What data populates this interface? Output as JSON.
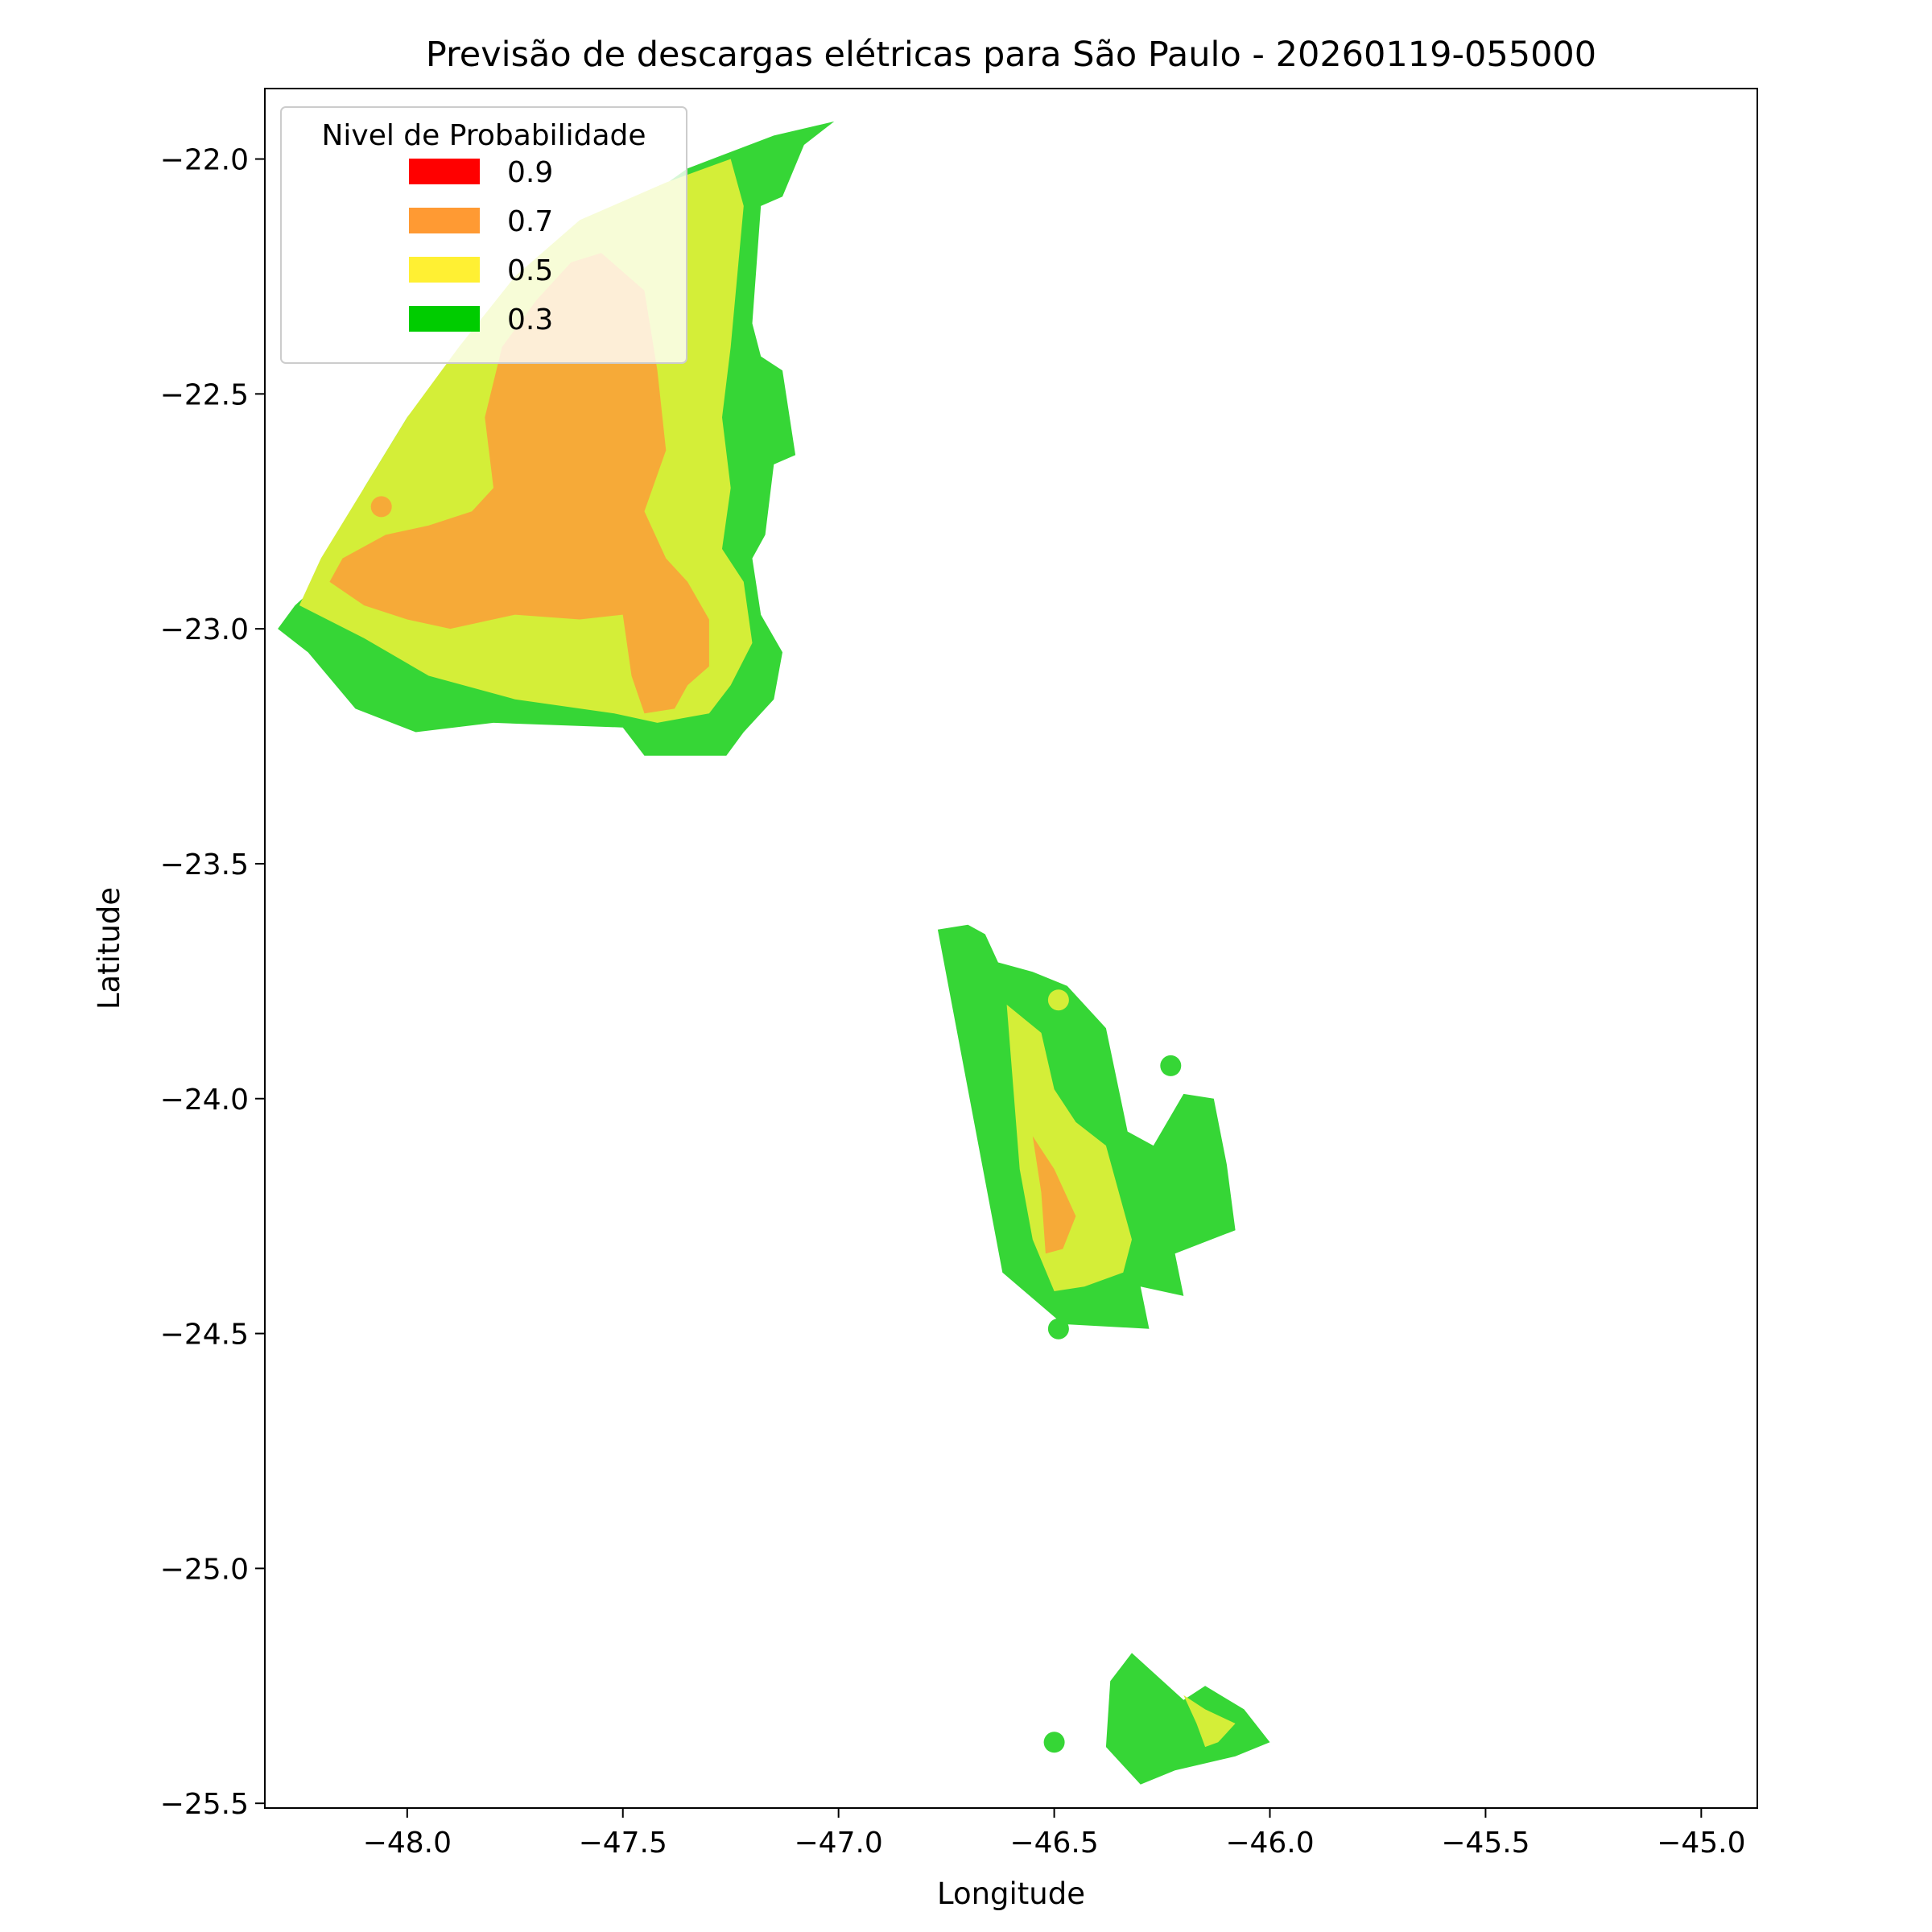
{
  "chart_data": {
    "type": "contour-map",
    "title": "Previsão de descargas elétricas para São Paulo - 20260119-055000",
    "xlabel": "Longitude",
    "ylabel": "Latitude",
    "xlim": [
      -48.33,
      -44.87
    ],
    "ylim": [
      -25.51,
      -21.85
    ],
    "xticks": [
      {
        "value": -48.0,
        "label": "−48.0"
      },
      {
        "value": -47.5,
        "label": "−47.5"
      },
      {
        "value": -47.0,
        "label": "−47.0"
      },
      {
        "value": -46.5,
        "label": "−46.5"
      },
      {
        "value": -46.0,
        "label": "−46.0"
      },
      {
        "value": -45.5,
        "label": "−45.5"
      },
      {
        "value": -45.0,
        "label": "−45.0"
      }
    ],
    "yticks": [
      {
        "value": -22.0,
        "label": "−22.0"
      },
      {
        "value": -22.5,
        "label": "−22.5"
      },
      {
        "value": -23.0,
        "label": "−23.0"
      },
      {
        "value": -23.5,
        "label": "−23.5"
      },
      {
        "value": -24.0,
        "label": "−24.0"
      },
      {
        "value": -24.5,
        "label": "−24.5"
      },
      {
        "value": -25.0,
        "label": "−25.0"
      },
      {
        "value": -25.5,
        "label": "−25.5"
      }
    ],
    "legend": {
      "title": "Nivel de Probabilidade",
      "placement": "upper-left",
      "entries": [
        {
          "label": "0.9",
          "color": "#ff0000"
        },
        {
          "label": "0.7",
          "color": "#ff9a33"
        },
        {
          "label": "0.5",
          "color": "#fff033"
        },
        {
          "label": "0.3",
          "color": "#00cc00"
        }
      ]
    },
    "level_colors": {
      "0.3": "#36d636",
      "0.5": "#d4ee38",
      "0.7": "#f6aa38"
    },
    "regions": [
      {
        "level": "0.3",
        "points": [
          [
            -47.01,
            -21.92
          ],
          [
            -47.08,
            -21.97
          ],
          [
            -47.13,
            -22.08
          ],
          [
            -47.18,
            -22.1
          ],
          [
            -47.2,
            -22.35
          ],
          [
            -47.18,
            -22.42
          ],
          [
            -47.13,
            -22.45
          ],
          [
            -47.1,
            -22.63
          ],
          [
            -47.15,
            -22.65
          ],
          [
            -47.17,
            -22.8
          ],
          [
            -47.2,
            -22.85
          ],
          [
            -47.18,
            -22.97
          ],
          [
            -47.13,
            -23.05
          ],
          [
            -47.15,
            -23.15
          ],
          [
            -47.22,
            -23.22
          ],
          [
            -47.26,
            -23.27
          ],
          [
            -47.45,
            -23.27
          ],
          [
            -47.5,
            -23.21
          ],
          [
            -47.8,
            -23.2
          ],
          [
            -47.98,
            -23.22
          ],
          [
            -48.12,
            -23.17
          ],
          [
            -48.23,
            -23.05
          ],
          [
            -48.3,
            -23.0
          ],
          [
            -48.26,
            -22.95
          ],
          [
            -48.2,
            -22.9
          ],
          [
            -48.1,
            -22.7
          ],
          [
            -48.0,
            -22.55
          ],
          [
            -47.85,
            -22.38
          ],
          [
            -47.7,
            -22.27
          ],
          [
            -47.55,
            -22.15
          ],
          [
            -47.35,
            -22.02
          ],
          [
            -47.15,
            -21.95
          ]
        ]
      },
      {
        "level": "0.5",
        "points": [
          [
            -47.25,
            -22.0
          ],
          [
            -47.22,
            -22.1
          ],
          [
            -47.25,
            -22.4
          ],
          [
            -47.27,
            -22.55
          ],
          [
            -47.25,
            -22.7
          ],
          [
            -47.27,
            -22.83
          ],
          [
            -47.22,
            -22.9
          ],
          [
            -47.2,
            -23.03
          ],
          [
            -47.25,
            -23.12
          ],
          [
            -47.3,
            -23.18
          ],
          [
            -47.42,
            -23.2
          ],
          [
            -47.52,
            -23.18
          ],
          [
            -47.75,
            -23.15
          ],
          [
            -47.95,
            -23.1
          ],
          [
            -48.1,
            -23.02
          ],
          [
            -48.25,
            -22.95
          ],
          [
            -48.2,
            -22.85
          ],
          [
            -48.1,
            -22.7
          ],
          [
            -48.0,
            -22.55
          ],
          [
            -47.88,
            -22.4
          ],
          [
            -47.75,
            -22.25
          ],
          [
            -47.6,
            -22.13
          ],
          [
            -47.4,
            -22.05
          ]
        ]
      },
      {
        "level": "0.7",
        "points": [
          [
            -47.55,
            -22.2
          ],
          [
            -47.45,
            -22.28
          ],
          [
            -47.42,
            -22.45
          ],
          [
            -47.4,
            -22.62
          ],
          [
            -47.45,
            -22.75
          ],
          [
            -47.4,
            -22.85
          ],
          [
            -47.35,
            -22.9
          ],
          [
            -47.3,
            -22.98
          ],
          [
            -47.3,
            -23.08
          ],
          [
            -47.35,
            -23.12
          ],
          [
            -47.38,
            -23.17
          ],
          [
            -47.45,
            -23.18
          ],
          [
            -47.48,
            -23.1
          ],
          [
            -47.5,
            -22.97
          ],
          [
            -47.6,
            -22.98
          ],
          [
            -47.75,
            -22.97
          ],
          [
            -47.9,
            -23.0
          ],
          [
            -48.0,
            -22.98
          ],
          [
            -48.1,
            -22.95
          ],
          [
            -48.18,
            -22.9
          ],
          [
            -48.15,
            -22.85
          ],
          [
            -48.05,
            -22.8
          ],
          [
            -47.95,
            -22.78
          ],
          [
            -47.85,
            -22.75
          ],
          [
            -47.8,
            -22.7
          ],
          [
            -47.82,
            -22.55
          ],
          [
            -47.78,
            -22.4
          ],
          [
            -47.7,
            -22.3
          ],
          [
            -47.62,
            -22.22
          ]
        ]
      },
      {
        "level": "0.3",
        "points": [
          [
            -46.77,
            -23.64
          ],
          [
            -46.62,
            -24.37
          ],
          [
            -46.48,
            -24.48
          ],
          [
            -46.28,
            -24.49
          ],
          [
            -46.3,
            -24.4
          ],
          [
            -46.2,
            -24.42
          ],
          [
            -46.22,
            -24.33
          ],
          [
            -46.08,
            -24.28
          ],
          [
            -46.1,
            -24.14
          ],
          [
            -46.13,
            -24.0
          ],
          [
            -46.2,
            -23.99
          ],
          [
            -46.27,
            -24.1
          ],
          [
            -46.33,
            -24.07
          ],
          [
            -46.38,
            -23.85
          ],
          [
            -46.47,
            -23.76
          ],
          [
            -46.55,
            -23.73
          ],
          [
            -46.63,
            -23.71
          ],
          [
            -46.66,
            -23.65
          ],
          [
            -46.7,
            -23.63
          ]
        ]
      },
      {
        "level": "0.5",
        "points": [
          [
            -46.61,
            -23.8
          ],
          [
            -46.53,
            -23.86
          ],
          [
            -46.5,
            -23.98
          ],
          [
            -46.45,
            -24.05
          ],
          [
            -46.38,
            -24.1
          ],
          [
            -46.32,
            -24.3
          ],
          [
            -46.34,
            -24.37
          ],
          [
            -46.43,
            -24.4
          ],
          [
            -46.5,
            -24.41
          ],
          [
            -46.55,
            -24.3
          ],
          [
            -46.58,
            -24.15
          ]
        ]
      },
      {
        "level": "0.7",
        "points": [
          [
            -46.55,
            -24.08
          ],
          [
            -46.5,
            -24.15
          ],
          [
            -46.45,
            -24.25
          ],
          [
            -46.48,
            -24.32
          ],
          [
            -46.52,
            -24.33
          ],
          [
            -46.53,
            -24.2
          ]
        ]
      },
      {
        "level": "0.3",
        "points": [
          [
            -46.32,
            -25.18
          ],
          [
            -46.2,
            -25.28
          ],
          [
            -46.15,
            -25.25
          ],
          [
            -46.06,
            -25.3
          ],
          [
            -46.0,
            -25.37
          ],
          [
            -46.08,
            -25.4
          ],
          [
            -46.22,
            -25.43
          ],
          [
            -46.3,
            -25.46
          ],
          [
            -46.38,
            -25.38
          ],
          [
            -46.37,
            -25.24
          ]
        ]
      },
      {
        "level": "0.5",
        "points": [
          [
            -46.2,
            -25.27
          ],
          [
            -46.17,
            -25.33
          ],
          [
            -46.15,
            -25.38
          ],
          [
            -46.12,
            -25.37
          ],
          [
            -46.08,
            -25.33
          ],
          [
            -46.15,
            -25.3
          ]
        ]
      }
    ],
    "blobs": [
      {
        "level": "0.7",
        "lon": -47.71,
        "lat": -22.59
      },
      {
        "level": "0.7",
        "lon": -48.06,
        "lat": -22.74
      },
      {
        "level": "0.5",
        "lon": -46.49,
        "lat": -23.79
      },
      {
        "level": "0.3",
        "lon": -46.23,
        "lat": -23.93
      },
      {
        "level": "0.3",
        "lon": -46.49,
        "lat": -24.49
      },
      {
        "level": "0.3",
        "lon": -46.5,
        "lat": -25.37
      }
    ]
  }
}
